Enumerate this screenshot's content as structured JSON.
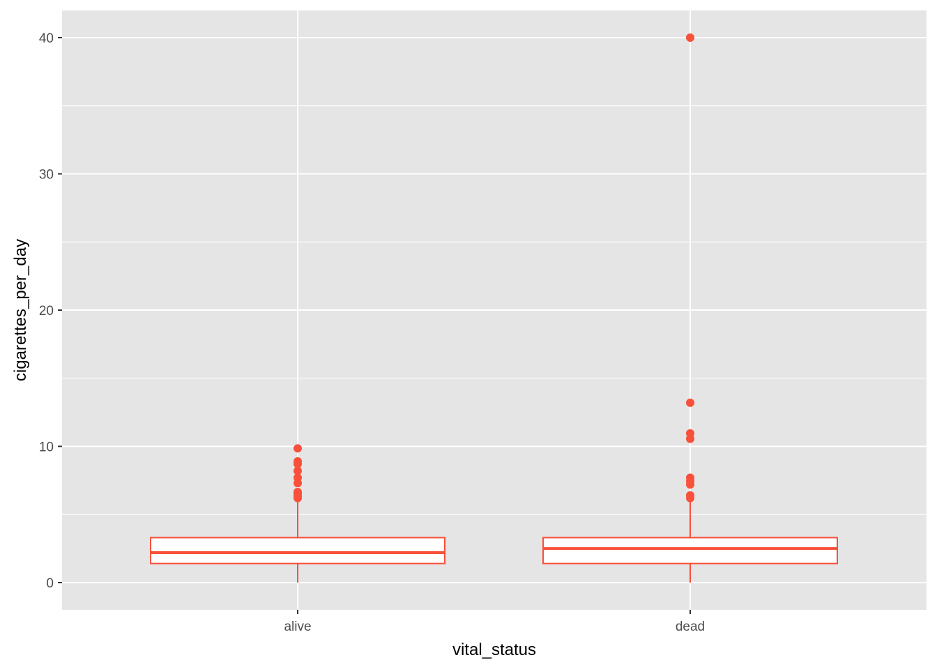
{
  "chart_data": {
    "type": "boxplot",
    "xlabel": "vital_status",
    "ylabel": "cigarettes_per_day",
    "categories": [
      "alive",
      "dead"
    ],
    "ylim": [
      -2,
      42
    ],
    "y_ticks": [
      0,
      10,
      20,
      30,
      40
    ],
    "y_minor_ticks": [
      5,
      15,
      25,
      35
    ],
    "grid": true,
    "colors": {
      "box_stroke": "#f8503a",
      "box_fill": "#ffffff",
      "panel_background": "#e5e5e5",
      "grid": "#ffffff",
      "tick_text": "#4d4d4d",
      "axis_title": "#000000"
    },
    "boxes": [
      {
        "category": "alive",
        "whisker_low": 0,
        "q1": 1.4,
        "median": 2.2,
        "q3": 3.3,
        "whisker_high": 6.1,
        "outliers": [
          6.2,
          6.35,
          6.5,
          6.65,
          7.3,
          7.7,
          8.2,
          8.7,
          8.9,
          9.85
        ]
      },
      {
        "category": "dead",
        "whisker_low": 0,
        "q1": 1.4,
        "median": 2.5,
        "q3": 3.3,
        "whisker_high": 6.1,
        "outliers": [
          6.2,
          6.4,
          7.2,
          7.45,
          7.7,
          10.55,
          10.95,
          13.2,
          40
        ]
      }
    ]
  }
}
